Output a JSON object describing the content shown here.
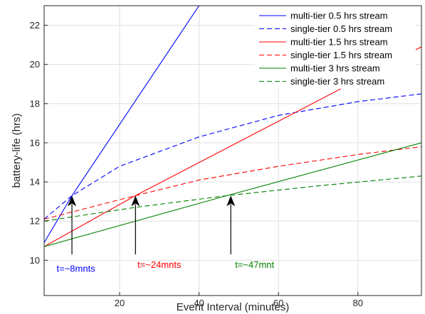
{
  "chart_data": {
    "type": "line",
    "title": "",
    "xlabel": "Event Interval (minutes)",
    "ylabel": "battery-life (hrs)",
    "xlim": [
      1,
      96
    ],
    "ylim": [
      8.2,
      23
    ],
    "xticks": [
      20,
      40,
      60,
      80
    ],
    "yticks": [
      10,
      12,
      14,
      16,
      18,
      20,
      22
    ],
    "grid": true,
    "legend_position": "top-right",
    "series": [
      {
        "name": "multi-tier 0.5 hrs stream",
        "color": "#0000ff",
        "dash": "solid",
        "x": [
          1,
          8,
          40
        ],
        "y": [
          10.9,
          13.3,
          23.0
        ]
      },
      {
        "name": "single-tier 0.5 hrs stream",
        "color": "#0000ff",
        "dash": "dashed",
        "x": [
          1,
          8,
          20,
          40,
          60,
          80,
          96
        ],
        "y": [
          12.1,
          13.3,
          14.8,
          16.3,
          17.4,
          18.1,
          18.5
        ]
      },
      {
        "name": "multi-tier 1.5 hrs stream",
        "color": "#ff0000",
        "dash": "solid",
        "x": [
          1,
          24,
          96
        ],
        "y": [
          10.7,
          13.3,
          20.9
        ]
      },
      {
        "name": "single-tier 1.5 hrs stream",
        "color": "#ff0000",
        "dash": "dashed",
        "x": [
          1,
          24,
          40,
          60,
          80,
          96
        ],
        "y": [
          12.1,
          13.3,
          14.1,
          14.8,
          15.4,
          15.8
        ]
      },
      {
        "name": "multi-tier 3 hrs stream",
        "color": "#008000",
        "dash": "solid",
        "x": [
          1,
          47,
          96
        ],
        "y": [
          10.7,
          13.3,
          16.0
        ]
      },
      {
        "name": "single-tier 3 hrs stream",
        "color": "#008000",
        "dash": "dashed",
        "x": [
          1,
          24,
          47,
          70,
          96
        ],
        "y": [
          12.0,
          12.7,
          13.3,
          13.8,
          14.3
        ]
      }
    ],
    "annotations": [
      {
        "text": "t=~8mnts",
        "color": "#0000ff",
        "x": 8,
        "y": 13.3,
        "arrow_from_y": 10.3,
        "label_x": 9,
        "label_y": 9.6
      },
      {
        "text": "t=~24mnts",
        "color": "#ff0000",
        "x": 24,
        "y": 13.3,
        "arrow_from_y": 10.3,
        "label_x": 30,
        "label_y": 9.8
      },
      {
        "text": "t=~47mnt",
        "color": "#008000",
        "x": 48,
        "y": 13.3,
        "arrow_from_y": 10.3,
        "label_x": 54,
        "label_y": 9.8
      }
    ]
  }
}
